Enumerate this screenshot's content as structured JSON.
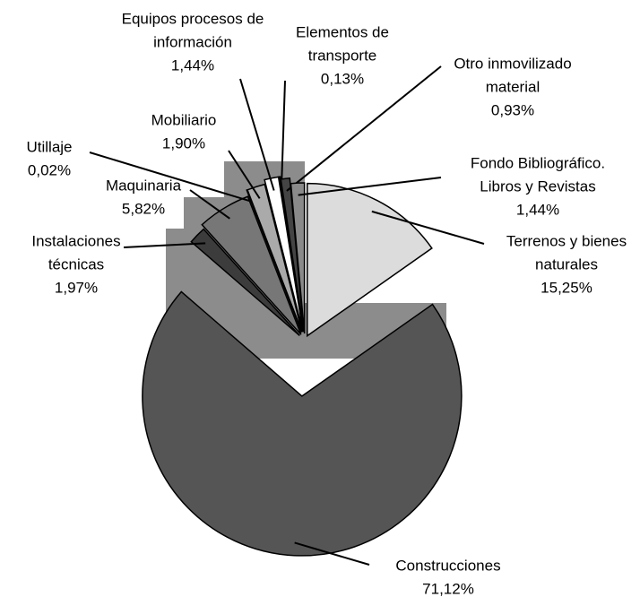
{
  "chart_data": {
    "type": "pie",
    "categories": [
      [
        "Terrenos y bienes",
        "naturales"
      ],
      [
        "Construcciones"
      ],
      [
        "Instalaciones",
        "técnicas"
      ],
      [
        "Maquinaria"
      ],
      [
        "Utillaje"
      ],
      [
        "Mobiliario"
      ],
      [
        "Equipos procesos de",
        "información"
      ],
      [
        "Elementos de",
        "transporte"
      ],
      [
        "Otro inmovilizado",
        "material"
      ],
      [
        "Fondo Bibliográfico.",
        "Libros y Revistas"
      ]
    ],
    "values": [
      15.25,
      71.12,
      1.97,
      5.82,
      0.02,
      1.9,
      1.44,
      0.13,
      0.93,
      1.44
    ],
    "value_labels": [
      "15,25%",
      "71,12%",
      "1,97%",
      "5,82%",
      "0,02%",
      "1,90%",
      "1,44%",
      "0,13%",
      "0,93%",
      "1,44%"
    ],
    "colors": [
      "#dcdcdc",
      "#555555",
      "#3c3c3c",
      "#777777",
      "#999999",
      "#aaaaaa",
      "#ffffff",
      "#2e2e2e",
      "#444444",
      "#8a8a8a"
    ]
  }
}
